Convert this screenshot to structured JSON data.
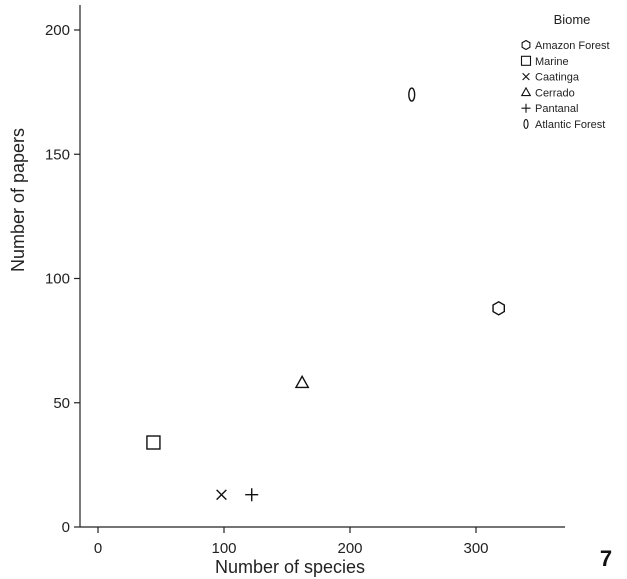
{
  "figure_number": "7",
  "chart_data": {
    "type": "scatter",
    "title": "",
    "xlabel": "Number of species",
    "ylabel": "Number of papers",
    "xlim": [
      -15,
      370
    ],
    "ylim": [
      0,
      210
    ],
    "xticks": [
      0,
      100,
      200,
      300
    ],
    "yticks": [
      0,
      50,
      100,
      150,
      200
    ],
    "grid": false,
    "legend": {
      "title": "Biome",
      "placement": "top-right"
    },
    "series": [
      {
        "name": "Amazon Forest",
        "marker": "hexagon",
        "x": [
          318
        ],
        "y": [
          88
        ]
      },
      {
        "name": "Marine",
        "marker": "square",
        "x": [
          44
        ],
        "y": [
          34
        ]
      },
      {
        "name": "Caatinga",
        "marker": "x",
        "x": [
          98
        ],
        "y": [
          13
        ]
      },
      {
        "name": "Cerrado",
        "marker": "triangle",
        "x": [
          162
        ],
        "y": [
          58
        ]
      },
      {
        "name": "Pantanal",
        "marker": "plus",
        "x": [
          122
        ],
        "y": [
          13
        ]
      },
      {
        "name": "Atlantic Forest",
        "marker": "zero",
        "x": [
          249
        ],
        "y": [
          174
        ]
      }
    ]
  }
}
